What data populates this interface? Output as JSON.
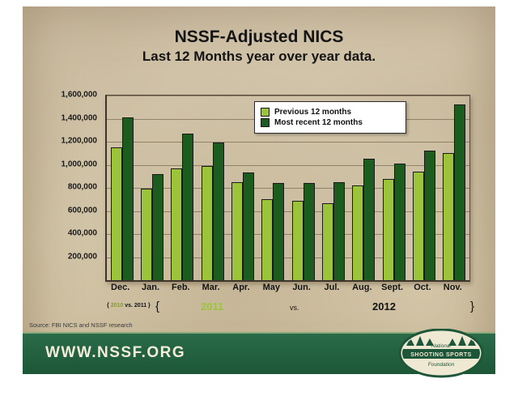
{
  "page": {
    "title": "NSSF-Adjusted NICS",
    "subtitle": "Last 12 Months year over year data.",
    "source": "Source: FBI NICS and NSSF research",
    "banner": {
      "url_text": "WWW.NSSF.ORG"
    },
    "logo": {
      "top": "National",
      "middle": "SHOOTING SPORTS",
      "bottom": "Foundation"
    }
  },
  "annotations": {
    "dec_note": {
      "open": "{",
      "prev_year": "2010",
      "vs": "vs.",
      "recent_year": "2011",
      "close": "}"
    },
    "span_open_brace": "{",
    "left_year": "2011",
    "vs": "vs.",
    "right_year": "2012",
    "span_close_brace": "}"
  },
  "colors": {
    "light_green": "#9cc43a",
    "dark_green": "#1d5c1f",
    "banner_green": "#1c5737",
    "parchment": "#d8ccb2"
  },
  "chart_data": {
    "type": "bar",
    "title": "NSSF-Adjusted NICS",
    "subtitle": "Last 12 Months year over year data.",
    "categories": [
      "Dec.",
      "Jan.",
      "Feb.",
      "Mar.",
      "Apr.",
      "May",
      "Jun.",
      "Jul.",
      "Aug.",
      "Sept.",
      "Oct.",
      "Nov."
    ],
    "series": [
      {
        "name": "Previous 12 months",
        "color": "#9cc43a",
        "values": [
          1150000,
          790000,
          970000,
          990000,
          850000,
          700000,
          690000,
          670000,
          820000,
          880000,
          940000,
          1100000
        ]
      },
      {
        "name": "Most recent 12 months",
        "color": "#1d5c1f",
        "values": [
          1410000,
          920000,
          1270000,
          1190000,
          930000,
          840000,
          840000,
          850000,
          1050000,
          1010000,
          1120000,
          1520000
        ]
      }
    ],
    "ylim": [
      0,
      1600000
    ],
    "ytick_interval": 200000,
    "ytick_labels": [
      "1,600,000",
      "1,400,000",
      "1,200,000",
      "1,000,000",
      "800,000",
      "600,000",
      "400,000",
      "200,000"
    ],
    "grid": true,
    "legend_position": "top-center-inside"
  }
}
